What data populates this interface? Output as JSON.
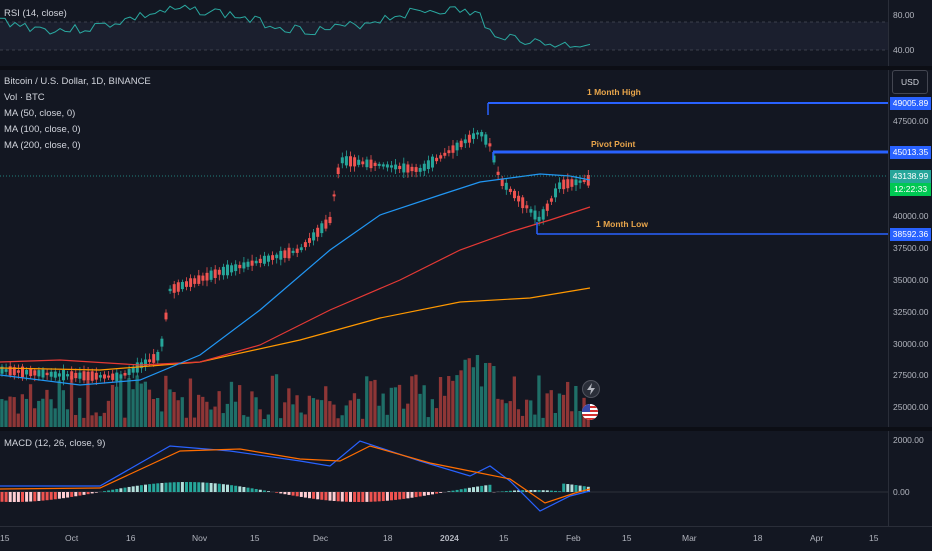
{
  "rsi": {
    "title": "RSI (14, close)",
    "ticks": [
      "80.00",
      "40.00"
    ]
  },
  "main": {
    "symbol": "Bitcoin / U.S. Dollar, 1D, BINANCE",
    "vol": "Vol · BTC",
    "ma50": "MA (50, close, 0)",
    "ma100": "MA (100, close, 0)",
    "ma200": "MA (200, close, 0)",
    "currency": "USD",
    "ticks": [
      "47500.00",
      "40000.00",
      "37500.00",
      "35000.00",
      "32500.00",
      "30000.00",
      "27500.00",
      "25000.00"
    ],
    "levels": {
      "high_label": "1 Month High",
      "high_price": "49005.89",
      "pivot_label": "Pivot Point",
      "pivot_price": "45013.35",
      "low_label": "1 Month Low",
      "low_price": "38592.36"
    },
    "current_price": "43138.99",
    "countdown": "12:22:33"
  },
  "macd": {
    "title": "MACD (12, 26, close, 9)",
    "ticks": [
      "2000.00",
      "0.00"
    ]
  },
  "time_axis": [
    "15",
    "Oct",
    "16",
    "Nov",
    "15",
    "Dec",
    "18",
    "2024",
    "15",
    "Feb",
    "15",
    "Mar",
    "18",
    "Apr",
    "15"
  ],
  "colors": {
    "up": "#26a69a",
    "down": "#ef5350",
    "ma50": "#2196f3",
    "ma100": "#e53935",
    "ma200": "#ff9800",
    "level": "#2962ff",
    "rsi": "#2aa8a0"
  }
}
